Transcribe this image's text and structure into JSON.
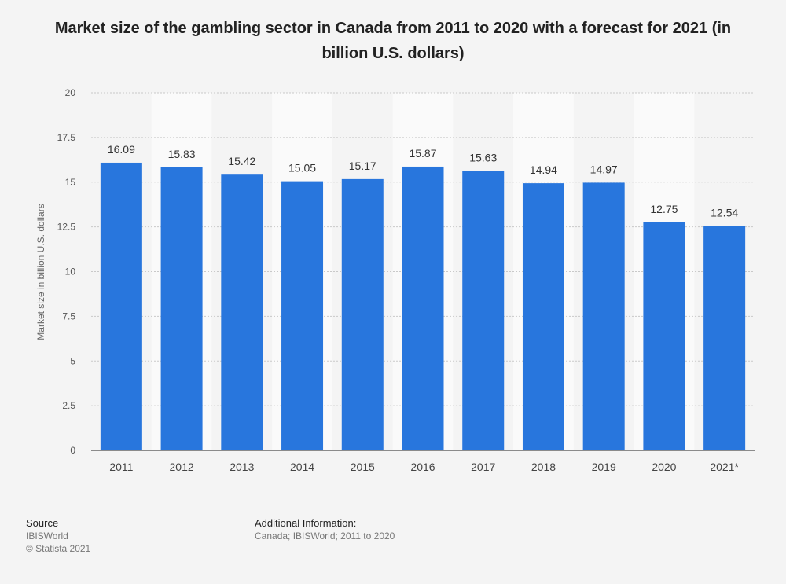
{
  "title": "Market size of the gambling sector in Canada from 2011 to 2020 with a forecast for 2021 (in billion U.S. dollars)",
  "chart_data": {
    "type": "bar",
    "title": "Market size of the gambling sector in Canada from 2011 to 2020 with a forecast for 2021 (in billion U.S. dollars)",
    "categories": [
      "2011",
      "2012",
      "2013",
      "2014",
      "2015",
      "2016",
      "2017",
      "2018",
      "2019",
      "2020",
      "2021*"
    ],
    "values": [
      16.09,
      15.83,
      15.42,
      15.05,
      15.17,
      15.87,
      15.63,
      14.94,
      14.97,
      12.75,
      12.54
    ],
    "value_labels": [
      "16.09",
      "15.83",
      "15.42",
      "15.05",
      "15.17",
      "15.87",
      "15.63",
      "14.94",
      "14.97",
      "12.75",
      "12.54"
    ],
    "xlabel": "",
    "ylabel": "Market size in billion U.S. dollars",
    "ylim": [
      0,
      20
    ],
    "yticks": [
      0,
      2.5,
      5,
      7.5,
      10,
      12.5,
      15,
      17.5,
      20
    ],
    "ytick_labels": [
      "0",
      "2.5",
      "5",
      "7.5",
      "10",
      "12.5",
      "15",
      "17.5",
      "20"
    ],
    "grid": true,
    "bar_color": "#2876dd"
  },
  "footer": {
    "source_heading": "Source",
    "source_lines": [
      "IBISWorld",
      "© Statista 2021"
    ],
    "info_heading": "Additional Information:",
    "info_text": "Canada; IBISWorld; 2011 to 2020"
  }
}
